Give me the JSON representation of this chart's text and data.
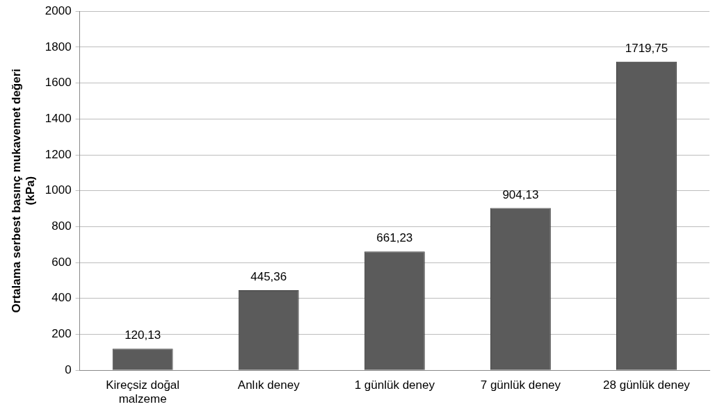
{
  "chart_data": {
    "type": "bar",
    "ylabel": "Ortalama serbest basınç mukavemet değeri (kPa)",
    "categories": [
      "Kireçsiz doğal malzeme",
      "Anlık deney",
      "1 günlük deney",
      "7 günlük deney",
      "28 günlük deney"
    ],
    "values": [
      120.13,
      445.36,
      661.23,
      904.13,
      1719.75
    ],
    "value_labels": [
      "120,13",
      "445,36",
      "661,23",
      "904,13",
      "1719,75"
    ],
    "color": "#5b5b5b",
    "ylim": [
      0,
      2000
    ],
    "yticks": [
      0,
      200,
      400,
      600,
      800,
      1000,
      1200,
      1400,
      1600,
      1800,
      2000
    ],
    "grid": "y",
    "legend": false
  }
}
